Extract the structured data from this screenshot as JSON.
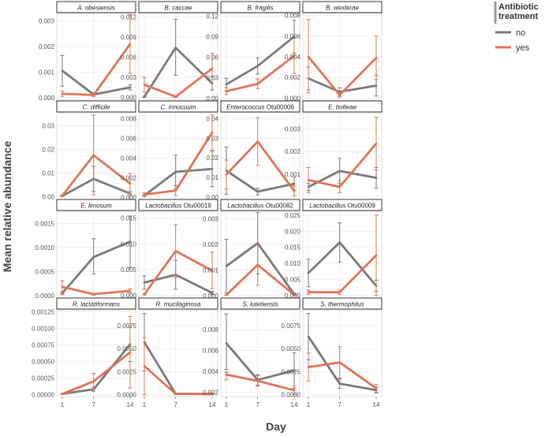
{
  "chart_data": {
    "type": "line",
    "xlabel": "Day",
    "ylabel": "Mean relative abundance",
    "x": [
      1,
      7,
      14
    ],
    "x_ticks": [
      "1",
      "7",
      "14"
    ],
    "grid": true,
    "legend": {
      "title_lines": [
        "Antibiotic",
        "treatment"
      ],
      "placement": "top-right",
      "entries": [
        {
          "label": "no",
          "color": "#7a7a7a"
        },
        {
          "label": "yes",
          "color": "#e07358"
        }
      ]
    },
    "panels": [
      {
        "title": [
          [
            "A. obesiensis",
            true
          ]
        ],
        "ylim": [
          -0.0001,
          0.0033
        ],
        "yticks": [
          "0.000",
          "0.001",
          "0.002",
          "0.003"
        ],
        "ytick_values": [
          0,
          0.001,
          0.002,
          0.003
        ],
        "series": [
          {
            "name": "no",
            "values": [
              0.00105,
              0.00012,
              0.0004
            ],
            "lower": [
              0.00045,
              5e-05,
              0.0003
            ],
            "upper": [
              0.00165,
              0.0002,
              0.0005
            ]
          },
          {
            "name": "yes",
            "values": [
              0.00015,
              0.0001,
              0.0021
            ],
            "lower": [
              5e-05,
              5e-05,
              0.00095
            ],
            "upper": [
              0.00025,
              0.00015,
              0.00325
            ]
          }
        ]
      },
      {
        "title": [
          [
            "B. caccae",
            true
          ]
        ],
        "ylim": [
          -0.0004,
          0.0125
        ],
        "yticks": [
          "0.000",
          "0.003",
          "0.006",
          "0.009",
          "0.012"
        ],
        "ytick_values": [
          0,
          0.003,
          0.006,
          0.009,
          0.012
        ],
        "series": [
          {
            "name": "no",
            "values": [
              0.0001,
              0.0074,
              0.0021
            ],
            "lower": [
              0.0,
              0.0033,
              0.0011
            ],
            "upper": [
              0.0002,
              0.0116,
              0.0031
            ]
          },
          {
            "name": "yes",
            "values": [
              0.0019,
              0.0001,
              0.0043
            ],
            "lower": [
              0.0008,
              0.0,
              0.0021
            ],
            "upper": [
              0.003,
              0.0002,
              0.0066
            ]
          }
        ]
      },
      {
        "title": [
          [
            "B. fragilis",
            true
          ]
        ],
        "ylim": [
          -0.003,
          0.124
        ],
        "yticks": [
          "0.00",
          "0.03",
          "0.06",
          "0.09",
          "0.12"
        ],
        "ytick_values": [
          0,
          0.03,
          0.06,
          0.09,
          0.12
        ],
        "series": [
          {
            "name": "no",
            "values": [
              0.02,
              0.047,
              0.09
            ],
            "lower": [
              0.011,
              0.035,
              0.066
            ],
            "upper": [
              0.029,
              0.059,
              0.114
            ]
          },
          {
            "name": "yes",
            "values": [
              0.01,
              0.021,
              0.062
            ],
            "lower": [
              0.005,
              0.014,
              0.036
            ],
            "upper": [
              0.015,
              0.028,
              0.088
            ]
          }
        ]
      },
      {
        "title": [
          [
            "B. wexlerae",
            true
          ]
        ],
        "ylim": [
          -0.0002,
          0.0082
        ],
        "yticks": [
          "0.000",
          "0.002",
          "0.004",
          "0.006",
          "0.008"
        ],
        "ytick_values": [
          0,
          0.002,
          0.004,
          0.006,
          0.008
        ],
        "series": [
          {
            "name": "no",
            "values": [
              0.0019,
              0.0006,
              0.0012
            ],
            "lower": [
              0.0008,
              0.0002,
              0.0002
            ],
            "upper": [
              0.003,
              0.001,
              0.0022
            ]
          },
          {
            "name": "yes",
            "values": [
              0.004,
              0.0003,
              0.0039
            ],
            "lower": [
              0.0005,
              0.0001,
              0.0018
            ],
            "upper": [
              0.0076,
              0.0005,
              0.006
            ]
          }
        ]
      },
      {
        "title": [
          [
            "C. difficile",
            true
          ]
        ],
        "ylim": [
          -0.0012,
          0.0355
        ],
        "yticks": [
          "0.00",
          "0.01",
          "0.02",
          "0.03"
        ],
        "ytick_values": [
          0,
          0.01,
          0.02,
          0.03
        ],
        "series": [
          {
            "name": "no",
            "values": [
              0.0003,
              0.0075,
              0.0013
            ],
            "lower": [
              0.0001,
              0.0022,
              0.0005
            ],
            "upper": [
              0.0005,
              0.0128,
              0.0021
            ]
          },
          {
            "name": "yes",
            "values": [
              0.0004,
              0.0175,
              0.0055
            ],
            "lower": [
              0.0001,
              0.0008,
              0.0012
            ],
            "upper": [
              0.0007,
              0.0345,
              0.0098
            ]
          }
        ]
      },
      {
        "title": [
          [
            "C. innocuum",
            true
          ]
        ],
        "ylim": [
          -0.0002,
          0.0086
        ],
        "yticks": [
          "0.000",
          "0.002",
          "0.004",
          "0.006",
          "0.008"
        ],
        "ytick_values": [
          0,
          0.002,
          0.004,
          0.006,
          0.008
        ],
        "series": [
          {
            "name": "no",
            "values": [
              0.0002,
              0.0026,
              0.0029
            ],
            "lower": [
              0.0001,
              0.0009,
              0.0011
            ],
            "upper": [
              0.0003,
              0.0043,
              0.0047
            ]
          },
          {
            "name": "yes",
            "values": [
              0.0003,
              0.0007,
              0.0066
            ],
            "lower": [
              0.0001,
              0.0002,
              0.0048
            ],
            "upper": [
              0.0005,
              0.0012,
              0.0084
            ]
          }
        ]
      },
      {
        "title": [
          [
            "Enterococcus",
            true
          ],
          [
            " Otu00006",
            false
          ]
        ],
        "ylim": [
          -0.0012,
          0.043
        ],
        "yticks": [
          "0.00",
          "0.01",
          "0.02",
          "0.03",
          "0.04"
        ],
        "ytick_values": [
          0,
          0.01,
          0.02,
          0.03,
          0.04
        ],
        "series": [
          {
            "name": "no",
            "values": [
              0.0135,
              0.0028,
              0.0068
            ],
            "lower": [
              0.0015,
              0.0012,
              0.0035
            ],
            "upper": [
              0.0255,
              0.0044,
              0.0101
            ]
          },
          {
            "name": "yes",
            "values": [
              0.0115,
              0.0283,
              0.0032
            ],
            "lower": [
              0.0041,
              0.0162,
              0.0007
            ],
            "upper": [
              0.0189,
              0.0404,
              0.0057
            ]
          }
        ]
      },
      {
        "title": [
          [
            "E. bolteae",
            true
          ]
        ],
        "ylim": [
          -0.0001,
          0.0037
        ],
        "yticks": [
          "0.001",
          "0.002",
          "0.003"
        ],
        "ytick_values": [
          0.001,
          0.002,
          0.003
        ],
        "series": [
          {
            "name": "no",
            "values": [
              0.00045,
              0.00115,
              0.00085
            ],
            "lower": [
              0.0003,
              0.0006,
              0.0004
            ],
            "upper": [
              0.0006,
              0.0017,
              0.0013
            ]
          },
          {
            "name": "yes",
            "values": [
              0.00075,
              0.00045,
              0.00235
            ],
            "lower": [
              0.0002,
              0.0002,
              0.0012
            ],
            "upper": [
              0.0013,
              0.0007,
              0.0035
            ]
          }
        ]
      },
      {
        "title": [
          [
            "E. limosum",
            true
          ]
        ],
        "ylim": [
          -5e-05,
          0.00175
        ],
        "yticks": [
          "0.0000",
          "0.0005",
          "0.0010",
          "0.0015"
        ],
        "ytick_values": [
          0,
          0.0005,
          0.001,
          0.0015
        ],
        "series": [
          {
            "name": "no",
            "values": [
              5e-05,
              0.0008,
              0.00112
            ],
            "lower": [
              2e-05,
              0.00045,
              0.00058
            ],
            "upper": [
              8e-05,
              0.00118,
              0.00165
            ]
          },
          {
            "name": "yes",
            "values": [
              0.00018,
              3e-05,
              0.0001
            ],
            "lower": [
              5e-05,
              1e-05,
              6e-05
            ],
            "upper": [
              0.00031,
              5e-05,
              0.00014
            ]
          }
        ]
      },
      {
        "title": [
          [
            "Lactobacillus",
            true
          ],
          [
            " Otu00019",
            false
          ]
        ],
        "ylim": [
          -0.0005,
          0.0163
        ],
        "yticks": [
          "0.000",
          "0.005",
          "0.010",
          "0.015"
        ],
        "ytick_values": [
          0,
          0.005,
          0.01,
          0.015
        ],
        "series": [
          {
            "name": "no",
            "values": [
              0.0025,
              0.004,
              0.0005
            ],
            "lower": [
              0.0012,
              0.0012,
              0.0002
            ],
            "upper": [
              0.0038,
              0.0068,
              0.0008
            ]
          },
          {
            "name": "yes",
            "values": [
              0.0002,
              0.0086,
              0.0048
            ],
            "lower": [
              0.0001,
              0.0035,
              0.0013
            ],
            "upper": [
              0.0003,
              0.0137,
              0.0084
            ]
          }
        ]
      },
      {
        "title": [
          [
            "Lactobacillus",
            true
          ],
          [
            " Otu00082",
            false
          ]
        ],
        "ylim": [
          -0.0001,
          0.0033
        ],
        "yticks": [
          "0.000",
          "0.001",
          "0.002",
          "0.003"
        ],
        "ytick_values": [
          0,
          0.001,
          0.002,
          0.003
        ],
        "series": [
          {
            "name": "no",
            "values": [
              0.00115,
              0.00205,
              5e-05
            ],
            "lower": [
              0.0001,
              0.00085,
              2e-05
            ],
            "upper": [
              0.0022,
              0.00325,
              8e-05
            ]
          },
          {
            "name": "yes",
            "values": [
              2e-05,
              0.0012,
              3e-05
            ],
            "lower": [
              1e-05,
              0.0004,
              1e-05
            ],
            "upper": [
              3e-05,
              0.002,
              5e-05
            ]
          }
        ]
      },
      {
        "title": [
          [
            "Lactobacillus",
            true
          ],
          [
            " Otu00009",
            false
          ]
        ],
        "ylim": [
          -0.0008,
          0.0262
        ],
        "yticks": [
          "0.000",
          "0.005",
          "0.010",
          "0.015",
          "0.020",
          "0.025"
        ],
        "ytick_values": [
          0,
          0.005,
          0.01,
          0.015,
          0.02,
          0.025
        ],
        "series": [
          {
            "name": "no",
            "values": [
              0.007,
              0.0165,
              0.003
            ],
            "lower": [
              0.0027,
              0.0104,
              0.0013
            ],
            "upper": [
              0.0113,
              0.0226,
              0.0047
            ]
          },
          {
            "name": "yes",
            "values": [
              0.001,
              0.001,
              0.0125
            ],
            "lower": [
              0.0003,
              0.0003,
              0.0
            ],
            "upper": [
              0.0017,
              0.0017,
              0.025
            ]
          }
        ]
      },
      {
        "title": [
          [
            "R. lactatiformans",
            true
          ]
        ],
        "ylim": [
          -3e-05,
          0.00128
        ],
        "yticks": [
          "0.00000",
          "0.00025",
          "0.00050",
          "0.00075",
          "0.00100",
          "0.00125"
        ],
        "ytick_values": [
          0,
          0.00025,
          0.0005,
          0.00075,
          0.001,
          0.00125
        ],
        "series": [
          {
            "name": "no",
            "values": [
              1e-05,
              8e-05,
              0.00076
            ],
            "lower": [
              5e-06,
              5e-05,
              0.0005
            ],
            "upper": [
              1.5e-05,
              0.00011,
              0.00102
            ]
          },
          {
            "name": "yes",
            "values": [
              1e-05,
              0.0002,
              0.00064
            ],
            "lower": [
              5e-06,
              8e-05,
              0.0001
            ],
            "upper": [
              1.5e-05,
              0.00032,
              0.00118
            ]
          }
        ]
      },
      {
        "title": [
          [
            "R. mucilaginosa",
            true
          ]
        ],
        "ylim": [
          -0.0002,
          0.0092
        ],
        "yticks": [
          "0.0000",
          "0.0025",
          "0.0050",
          "0.0075"
        ],
        "ytick_values": [
          0,
          0.0025,
          0.005,
          0.0075
        ],
        "series": [
          {
            "name": "no",
            "values": [
              0.0057,
              0.0001,
              0.0001
            ],
            "lower": [
              0.0026,
              5e-05,
              5e-05
            ],
            "upper": [
              0.0088,
              0.00015,
              0.00015
            ]
          },
          {
            "name": "yes",
            "values": [
              0.0031,
              0.0001,
              5e-05
            ],
            "lower": [
              0.0,
              5e-05,
              2e-05
            ],
            "upper": [
              0.0062,
              0.00015,
              8e-05
            ]
          }
        ]
      },
      {
        "title": [
          [
            "S. lutetiensis",
            true
          ]
        ],
        "ylim": [
          0.0016,
          0.0099
        ],
        "yticks": [
          "0.002",
          "0.004",
          "0.006",
          "0.008"
        ],
        "ytick_values": [
          0.002,
          0.004,
          0.006,
          0.008
        ],
        "series": [
          {
            "name": "no",
            "values": [
              0.0067,
              0.0032,
              0.0041
            ],
            "lower": [
              0.0039,
              0.0027,
              0.0024
            ],
            "upper": [
              0.0095,
              0.0037,
              0.0058
            ]
          },
          {
            "name": "yes",
            "values": [
              0.0037,
              0.0031,
              0.0022
            ],
            "lower": [
              0.0032,
              0.0026,
              0.0018
            ],
            "upper": [
              0.0042,
              0.0036,
              0.0026
            ]
          }
        ]
      },
      {
        "title": [
          [
            "S. thermophilus",
            true
          ]
        ],
        "ylim": [
          -0.0002,
          0.0092
        ],
        "yticks": [
          "0.0000",
          "0.0025",
          "0.0050",
          "0.0075"
        ],
        "ytick_values": [
          0,
          0.0025,
          0.005,
          0.0075
        ],
        "series": [
          {
            "name": "no",
            "values": [
              0.0063,
              0.0012,
              0.0005
            ],
            "lower": [
              0.0038,
              0.0007,
              0.0002
            ],
            "upper": [
              0.0088,
              0.0017,
              0.0008
            ]
          },
          {
            "name": "yes",
            "values": [
              0.003,
              0.0035,
              0.0007
            ],
            "lower": [
              0.0015,
              0.0018,
              0.0003
            ],
            "upper": [
              0.0045,
              0.0052,
              0.0011
            ]
          }
        ]
      }
    ]
  }
}
